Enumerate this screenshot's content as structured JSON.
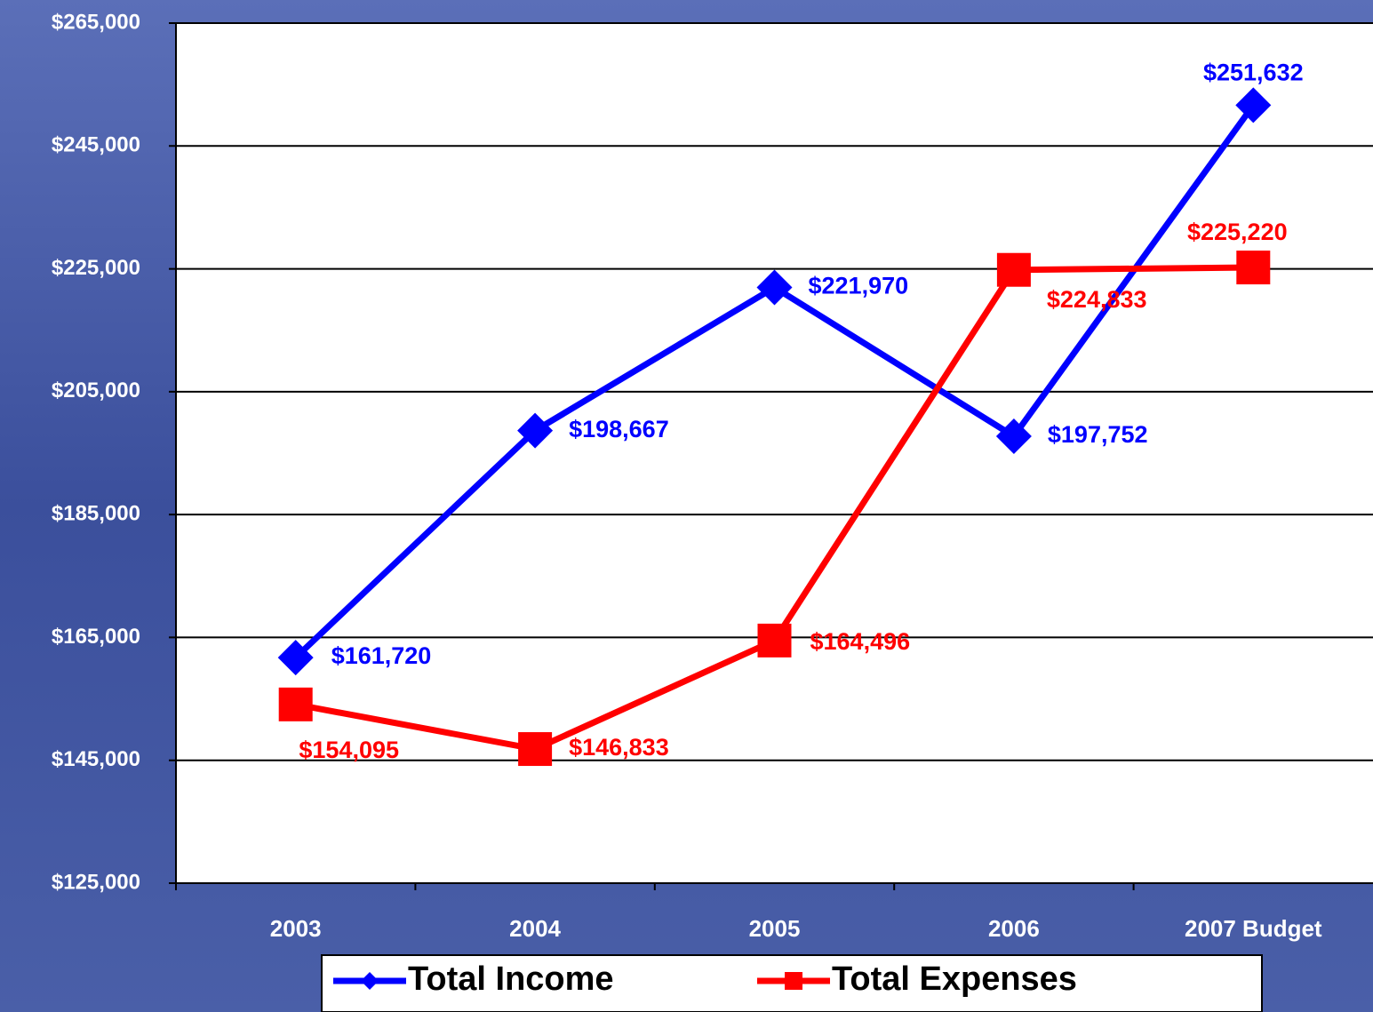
{
  "chart_data": {
    "type": "line",
    "categories": [
      "2003",
      "2004",
      "2005",
      "2006",
      "2007 Budget"
    ],
    "series": [
      {
        "name": "Total Income",
        "color": "#0000ff",
        "marker": "diamond",
        "values": [
          161720,
          198667,
          221970,
          197752,
          251632
        ],
        "value_labels": [
          "$161,720",
          "$198,667",
          "$221,970",
          "$197,752",
          "$251,632"
        ]
      },
      {
        "name": "Total Expenses",
        "color": "#ff0000",
        "marker": "square",
        "values": [
          154095,
          146833,
          164496,
          224833,
          225220
        ],
        "value_labels": [
          "$154,095",
          "$146,833",
          "$164,496",
          "$224,833",
          "$225,220"
        ]
      }
    ],
    "ylim": [
      125000,
      265000
    ],
    "yticks": [
      {
        "value": 125000,
        "label": "$125,000"
      },
      {
        "value": 145000,
        "label": "$145,000"
      },
      {
        "value": 165000,
        "label": "$165,000"
      },
      {
        "value": 185000,
        "label": "$185,000"
      },
      {
        "value": 205000,
        "label": "$205,000"
      },
      {
        "value": 225000,
        "label": "$225,000"
      },
      {
        "value": 245000,
        "label": "$245,000"
      },
      {
        "value": 265000,
        "label": "$265,000"
      }
    ],
    "grid": true
  }
}
